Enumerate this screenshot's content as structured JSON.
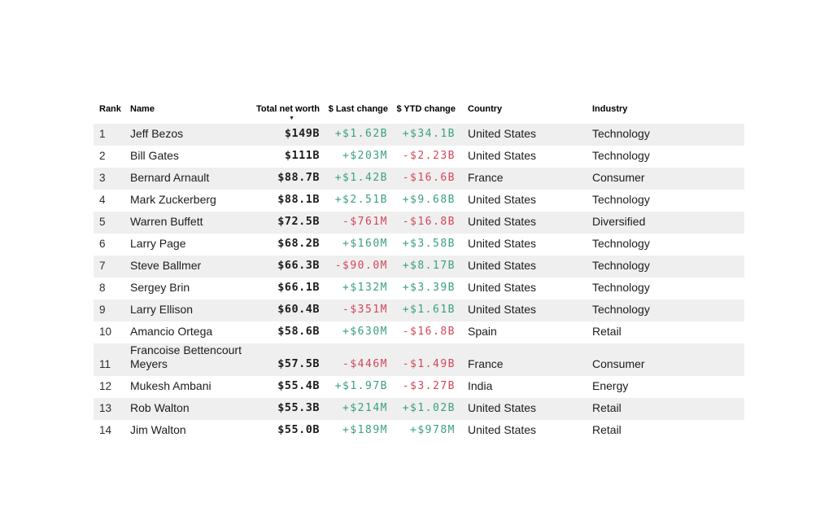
{
  "page": {
    "background": "#ffffff"
  },
  "table": {
    "columns": [
      {
        "key": "rank",
        "label": "Rank",
        "align": "left"
      },
      {
        "key": "name",
        "label": "Name",
        "align": "left"
      },
      {
        "key": "net_worth",
        "label": "Total net worth",
        "align": "right",
        "sorted": "desc"
      },
      {
        "key": "last_change",
        "label": "$ Last change",
        "align": "right"
      },
      {
        "key": "ytd_change",
        "label": "$ YTD change",
        "align": "right"
      },
      {
        "key": "country",
        "label": "Country",
        "align": "left"
      },
      {
        "key": "industry",
        "label": "Industry",
        "align": "left"
      }
    ],
    "sort_indicator": "▼",
    "colors": {
      "positive": "#3aa17c",
      "negative": "#d3465c",
      "stripe": "#efefef",
      "text": "#1c1c1c"
    },
    "rows": [
      {
        "rank": "1",
        "name": "Jeff Bezos",
        "net_worth": "$149B",
        "last_change": "+$1.62B",
        "ytd_change": "+$34.1B",
        "country": "United States",
        "industry": "Technology"
      },
      {
        "rank": "2",
        "name": "Bill Gates",
        "net_worth": "$111B",
        "last_change": "+$203M",
        "ytd_change": "-$2.23B",
        "country": "United States",
        "industry": "Technology"
      },
      {
        "rank": "3",
        "name": "Bernard Arnault",
        "net_worth": "$88.7B",
        "last_change": "+$1.42B",
        "ytd_change": "-$16.6B",
        "country": "France",
        "industry": "Consumer"
      },
      {
        "rank": "4",
        "name": "Mark Zuckerberg",
        "net_worth": "$88.1B",
        "last_change": "+$2.51B",
        "ytd_change": "+$9.68B",
        "country": "United States",
        "industry": "Technology"
      },
      {
        "rank": "5",
        "name": "Warren Buffett",
        "net_worth": "$72.5B",
        "last_change": "-$761M",
        "ytd_change": "-$16.8B",
        "country": "United States",
        "industry": "Diversified"
      },
      {
        "rank": "6",
        "name": "Larry Page",
        "net_worth": "$68.2B",
        "last_change": "+$160M",
        "ytd_change": "+$3.58B",
        "country": "United States",
        "industry": "Technology"
      },
      {
        "rank": "7",
        "name": "Steve Ballmer",
        "net_worth": "$66.3B",
        "last_change": "-$90.0M",
        "ytd_change": "+$8.17B",
        "country": "United States",
        "industry": "Technology"
      },
      {
        "rank": "8",
        "name": "Sergey Brin",
        "net_worth": "$66.1B",
        "last_change": "+$132M",
        "ytd_change": "+$3.39B",
        "country": "United States",
        "industry": "Technology"
      },
      {
        "rank": "9",
        "name": "Larry Ellison",
        "net_worth": "$60.4B",
        "last_change": "-$351M",
        "ytd_change": "+$1.61B",
        "country": "United States",
        "industry": "Technology"
      },
      {
        "rank": "10",
        "name": "Amancio Ortega",
        "net_worth": "$58.6B",
        "last_change": "+$630M",
        "ytd_change": "-$16.8B",
        "country": "Spain",
        "industry": "Retail"
      },
      {
        "rank": "11",
        "name": "Francoise Bettencourt Meyers",
        "net_worth": "$57.5B",
        "last_change": "-$446M",
        "ytd_change": "-$1.49B",
        "country": "France",
        "industry": "Consumer"
      },
      {
        "rank": "12",
        "name": "Mukesh Ambani",
        "net_worth": "$55.4B",
        "last_change": "+$1.97B",
        "ytd_change": "-$3.27B",
        "country": "India",
        "industry": "Energy"
      },
      {
        "rank": "13",
        "name": "Rob Walton",
        "net_worth": "$55.3B",
        "last_change": "+$214M",
        "ytd_change": "+$1.02B",
        "country": "United States",
        "industry": "Retail"
      },
      {
        "rank": "14",
        "name": "Jim Walton",
        "net_worth": "$55.0B",
        "last_change": "+$189M",
        "ytd_change": "+$978M",
        "country": "United States",
        "industry": "Retail"
      }
    ]
  }
}
